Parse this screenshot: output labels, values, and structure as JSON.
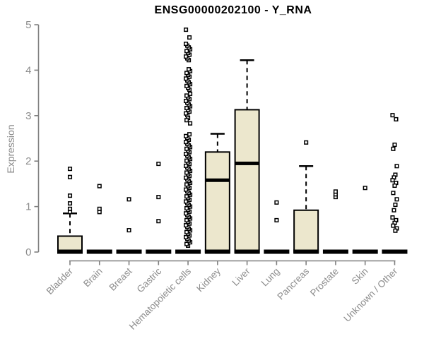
{
  "chart_data": {
    "type": "boxplot",
    "title": "ENSG00000202100 - Y_RNA",
    "ylabel": "Expression",
    "xlabel": "",
    "ylim": [
      0,
      5
    ],
    "yticks": [
      0,
      1,
      2,
      3,
      4,
      5
    ],
    "grid": false,
    "legend": "none",
    "box_fill": "#ece7cd",
    "box_stroke": "#000000",
    "axis_color": "#808080",
    "label_color": "#8c8c8c",
    "title_color": "#000000",
    "categories": [
      "Bladder",
      "Brain",
      "Breast",
      "Gastric",
      "Hematopoietic cells",
      "Kidney",
      "Liver",
      "Lung",
      "Pancreas",
      "Prostate",
      "Skin",
      "Unknown / Other"
    ],
    "boxes": [
      {
        "category": "Bladder",
        "q1": 0,
        "median": 0,
        "q3": 0.35,
        "whisker_low": 0,
        "whisker_high": 0.85,
        "outliers": [
          0.88,
          0.95,
          1.07,
          1.24,
          1.65,
          1.83
        ]
      },
      {
        "category": "Brain",
        "q1": 0,
        "median": 0,
        "q3": 0,
        "whisker_low": 0,
        "whisker_high": 0,
        "outliers": [
          0.88,
          0.95,
          1.45
        ]
      },
      {
        "category": "Breast",
        "q1": 0,
        "median": 0,
        "q3": 0,
        "whisker_low": 0,
        "whisker_high": 0,
        "outliers": [
          0.48,
          1.16
        ]
      },
      {
        "category": "Gastric",
        "q1": 0,
        "median": 0,
        "q3": 0,
        "whisker_low": 0,
        "whisker_high": 0,
        "outliers": [
          0.68,
          1.21,
          1.94
        ]
      },
      {
        "category": "Hematopoietic cells",
        "q1": 0,
        "median": 0,
        "q3": 0,
        "whisker_low": 0,
        "whisker_high": 0,
        "outliers": [
          4.89,
          4.72,
          2.95,
          2.9,
          2.83
        ],
        "outlier_runs": [
          {
            "from": 4.22,
            "to": 4.58,
            "count": 10
          },
          {
            "from": 3.57,
            "to": 4.02,
            "count": 12
          },
          {
            "from": 3.01,
            "to": 3.48,
            "count": 13
          },
          {
            "from": 2.47,
            "to": 2.59,
            "count": 4
          },
          {
            "from": 0.14,
            "to": 2.42,
            "count": 62
          }
        ]
      },
      {
        "category": "Kidney",
        "q1": 0,
        "median": 1.58,
        "q3": 2.2,
        "whisker_low": 0,
        "whisker_high": 2.6,
        "outliers": []
      },
      {
        "category": "Liver",
        "q1": 0,
        "median": 1.95,
        "q3": 3.13,
        "whisker_low": 0,
        "whisker_high": 4.22,
        "outliers": []
      },
      {
        "category": "Lung",
        "q1": 0,
        "median": 0,
        "q3": 0,
        "whisker_low": 0,
        "whisker_high": 0,
        "outliers": [
          0.7,
          1.09
        ]
      },
      {
        "category": "Pancreas",
        "q1": 0,
        "median": 0,
        "q3": 0.92,
        "whisker_low": 0,
        "whisker_high": 1.89,
        "outliers": [
          2.41
        ]
      },
      {
        "category": "Prostate",
        "q1": 0,
        "median": 0,
        "q3": 0,
        "whisker_low": 0,
        "whisker_high": 0,
        "outliers": [
          1.21,
          1.27,
          1.33
        ]
      },
      {
        "category": "Skin",
        "q1": 0,
        "median": 0,
        "q3": 0,
        "whisker_low": 0,
        "whisker_high": 0,
        "outliers": [
          1.41
        ]
      },
      {
        "category": "Unknown / Other",
        "q1": 0,
        "median": 0,
        "q3": 0,
        "whisker_low": 0,
        "whisker_high": 0,
        "outliers": [
          3.01,
          2.92,
          2.36,
          2.27,
          1.89,
          1.7,
          1.64,
          1.58,
          1.52,
          1.46,
          1.3,
          1.16,
          1.04,
          0.92,
          0.76,
          0.7,
          0.64,
          0.58,
          0.52,
          0.47
        ]
      }
    ]
  }
}
